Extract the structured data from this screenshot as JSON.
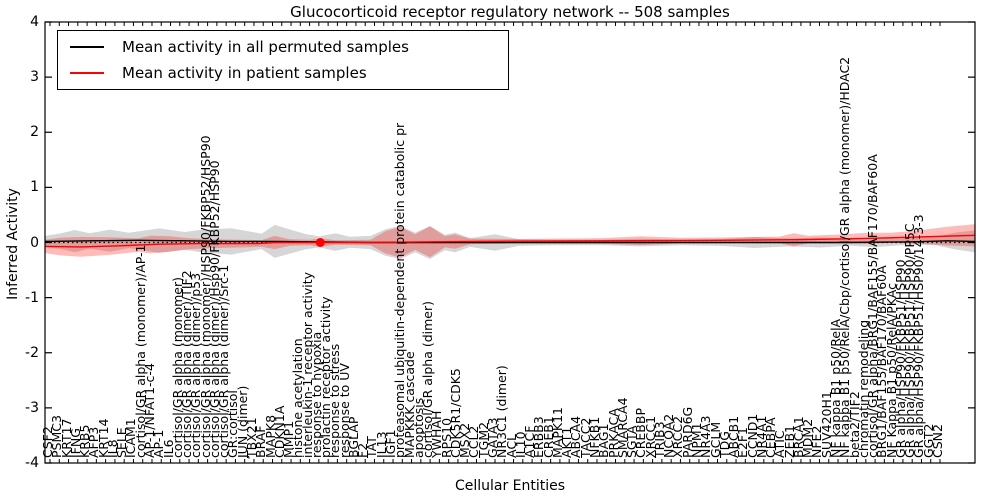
{
  "chart_data": {
    "type": "line",
    "title": "Glucocorticoid receptor regulatory network -- 508 samples",
    "xlabel": "Cellular Entities",
    "ylabel": "Inferred Activity",
    "ylim": [
      -4,
      4
    ],
    "ytick_labels": [
      "-4",
      "-3",
      "-2",
      "-1",
      "0",
      "1",
      "2",
      "3",
      "4"
    ],
    "ytick_values": [
      -4,
      -3,
      -2,
      -1,
      0,
      1,
      2,
      3,
      4
    ],
    "grid": false,
    "legend_position": "upper left",
    "categories": [
      "CSF2",
      "PSMC3",
      "KRT17",
      "IFNG",
      "KRB5",
      "AFP3",
      "KRT14",
      "IL8",
      "SELE",
      "ICAM1",
      "cortisol/GR alpha (monomer)/AP-1",
      "AP-1/NFAT1-c-4",
      "AP-1",
      "IL6",
      "cortisol/GR alpha (monomer)",
      "cortisol/GR alpha (dimer)/TIF2",
      "cortisol/GR alpha (dimer)/p53",
      "cortisol/GR alpha (monomer)/HSP90/FKBP52/HSP90",
      "cortisol/GR alpha (dimer)/Hsp90/FKBP52/HSP90",
      "cortisol/GR alpha (dimer)/Src-1",
      "GR:cortisol",
      "JUN (dimer)",
      "TBX21",
      "BRAF",
      "MAPK8",
      "CDKN1A",
      "MMP1",
      "histone acetylation",
      "interleukin-1 receptor activity",
      "response to hypoxia",
      "prolactin receptor activity",
      "response to stress",
      "response to UV",
      "BGLAP",
      "F2",
      "TAT",
      "IL13",
      "IGF1",
      "proteasomal ubiquitin-dependent protein catabolic pr",
      "MAPKKK cascade",
      "apoptosis",
      "cortisol/GR alpha (dimer)",
      "YWHAH",
      "RPS10",
      "CDK5R1/CDK5",
      "MSX2",
      "CCL2",
      "TGM2",
      "GATA3",
      "NR3C1 (dimer)",
      "ACL",
      "IL10",
      "A1CF",
      "ERBB3",
      "CREB1",
      "MAPK11",
      "AKT1",
      "ABCA4",
      "TACC2",
      "NFKB1",
      "BAG1",
      "PRKACA",
      "SMARCA4",
      "SGTA",
      "CREBBP",
      "XRCC1",
      "TRIB3",
      "NCOA2",
      "XRCC2",
      "PARD6G",
      "NPM1",
      "NR4A3",
      "GCLM",
      "TDG",
      "ABCB1",
      "E2F1",
      "CCND1",
      "NR4A1",
      "CEBPA",
      "ATIC",
      "ZEB1",
      "BRCA1",
      "MDM2",
      "NFE2",
      "SUV420H1",
      "NF kappa B1 p50/RelA",
      "NF kappa B1 p50/RelA/Cbp/cortisol/GR alpha (monomer)/HDAC2",
      "beta2/TIF2",
      "chromatin remodeling",
      "cortisol/GR alpha/BRG1/BAF155/BAF170/BAF60A",
      "BRG1/BAF155/BAF170/BAF60A",
      "NF Kappa B1 p50/RelA/PKAc",
      "GR alpha/HSP90/FKBP51/HSP90",
      "GR alpha/HSP90/FKBP51/HSP90/PP5C",
      "GR alpha/HSP90/FKBP51/HSP90/14-3-3",
      "GGT2",
      "CSN2"
    ],
    "series": [
      {
        "name": "Mean activity in all permuted samples",
        "color": "#000000",
        "keypoints": [
          [
            0.0,
            0.02
          ],
          [
            0.05,
            0.03
          ],
          [
            0.1,
            0.04
          ],
          [
            0.15,
            0.03
          ],
          [
            0.2,
            0.02
          ],
          [
            0.25,
            0.02
          ],
          [
            0.3,
            0.01
          ],
          [
            0.35,
            0.0
          ],
          [
            0.45,
            0.0
          ],
          [
            0.6,
            0.0
          ],
          [
            0.75,
            0.0
          ],
          [
            0.85,
            0.0
          ],
          [
            0.93,
            0.01
          ],
          [
            0.97,
            0.03
          ],
          [
            1.0,
            0.02
          ]
        ],
        "band": {
          "color": "rgba(0,0,0,0.16)",
          "keypoints": [
            [
              0.0,
              0.1
            ],
            [
              0.016,
              0.14
            ],
            [
              0.032,
              0.2
            ],
            [
              0.048,
              0.14
            ],
            [
              0.07,
              0.2
            ],
            [
              0.09,
              0.14
            ],
            [
              0.123,
              0.22
            ],
            [
              0.15,
              0.16
            ],
            [
              0.166,
              0.2
            ],
            [
              0.2,
              0.24
            ],
            [
              0.22,
              0.18
            ],
            [
              0.233,
              0.14
            ],
            [
              0.247,
              0.3
            ],
            [
              0.263,
              0.22
            ],
            [
              0.28,
              0.14
            ],
            [
              0.295,
              0.1
            ],
            [
              0.312,
              0.16
            ],
            [
              0.328,
              0.1
            ],
            [
              0.35,
              0.12
            ],
            [
              0.366,
              0.24
            ],
            [
              0.382,
              0.3
            ],
            [
              0.398,
              0.18
            ],
            [
              0.414,
              0.3
            ],
            [
              0.43,
              0.14
            ],
            [
              0.441,
              0.18
            ],
            [
              0.457,
              0.08
            ],
            [
              0.484,
              0.15
            ],
            [
              0.51,
              0.06
            ],
            [
              0.554,
              0.05
            ],
            [
              0.6,
              0.05
            ],
            [
              0.64,
              0.07
            ],
            [
              0.683,
              0.05
            ],
            [
              0.726,
              0.06
            ],
            [
              0.763,
              0.1
            ],
            [
              0.801,
              0.07
            ],
            [
              0.833,
              0.09
            ],
            [
              0.866,
              0.06
            ],
            [
              0.892,
              0.09
            ],
            [
              0.919,
              0.06
            ],
            [
              0.957,
              0.07
            ],
            [
              0.978,
              0.15
            ],
            [
              1.0,
              0.2
            ]
          ]
        }
      },
      {
        "name": "Mean activity in patient samples",
        "color": "#ff0000",
        "keypoints": [
          [
            0.0,
            -0.07
          ],
          [
            0.038,
            -0.08
          ],
          [
            0.08,
            -0.06
          ],
          [
            0.123,
            -0.03
          ],
          [
            0.166,
            -0.02
          ],
          [
            0.23,
            -0.02
          ],
          [
            0.247,
            0.0
          ],
          [
            0.3,
            0.0
          ],
          [
            0.35,
            0.0
          ],
          [
            0.457,
            0.02
          ],
          [
            0.6,
            0.03
          ],
          [
            0.726,
            0.04
          ],
          [
            0.81,
            0.05
          ],
          [
            0.876,
            0.07
          ],
          [
            0.94,
            0.1
          ],
          [
            1.0,
            0.13
          ]
        ],
        "band": {
          "color": "rgba(255,0,0,0.27)",
          "keypoints": [
            [
              0.0,
              0.12
            ],
            [
              0.016,
              0.16
            ],
            [
              0.038,
              0.18
            ],
            [
              0.07,
              0.16
            ],
            [
              0.1,
              0.12
            ],
            [
              0.113,
              0.16
            ],
            [
              0.134,
              0.14
            ],
            [
              0.155,
              0.1
            ],
            [
              0.18,
              0.08
            ],
            [
              0.21,
              0.07
            ],
            [
              0.233,
              0.06
            ],
            [
              0.247,
              0.12
            ],
            [
              0.263,
              0.06
            ],
            [
              0.285,
              0.05
            ],
            [
              0.296,
              0.08
            ],
            [
              0.312,
              0.04
            ],
            [
              0.35,
              0.05
            ],
            [
              0.366,
              0.2
            ],
            [
              0.382,
              0.28
            ],
            [
              0.398,
              0.14
            ],
            [
              0.414,
              0.28
            ],
            [
              0.43,
              0.1
            ],
            [
              0.441,
              0.13
            ],
            [
              0.457,
              0.05
            ],
            [
              0.51,
              0.04
            ],
            [
              0.6,
              0.05
            ],
            [
              0.64,
              0.08
            ],
            [
              0.683,
              0.05
            ],
            [
              0.726,
              0.05
            ],
            [
              0.79,
              0.06
            ],
            [
              0.805,
              0.12
            ],
            [
              0.82,
              0.07
            ],
            [
              0.85,
              0.08
            ],
            [
              0.88,
              0.1
            ],
            [
              0.91,
              0.09
            ],
            [
              0.94,
              0.12
            ],
            [
              0.97,
              0.17
            ],
            [
              1.0,
              0.2
            ]
          ]
        }
      }
    ],
    "zero_line": {
      "style": "dotted",
      "color": "#000000",
      "y": 0
    },
    "markers": [
      {
        "x_frac": 0.296,
        "y": 0,
        "color": "#ff0000",
        "r": 4.5
      }
    ]
  }
}
